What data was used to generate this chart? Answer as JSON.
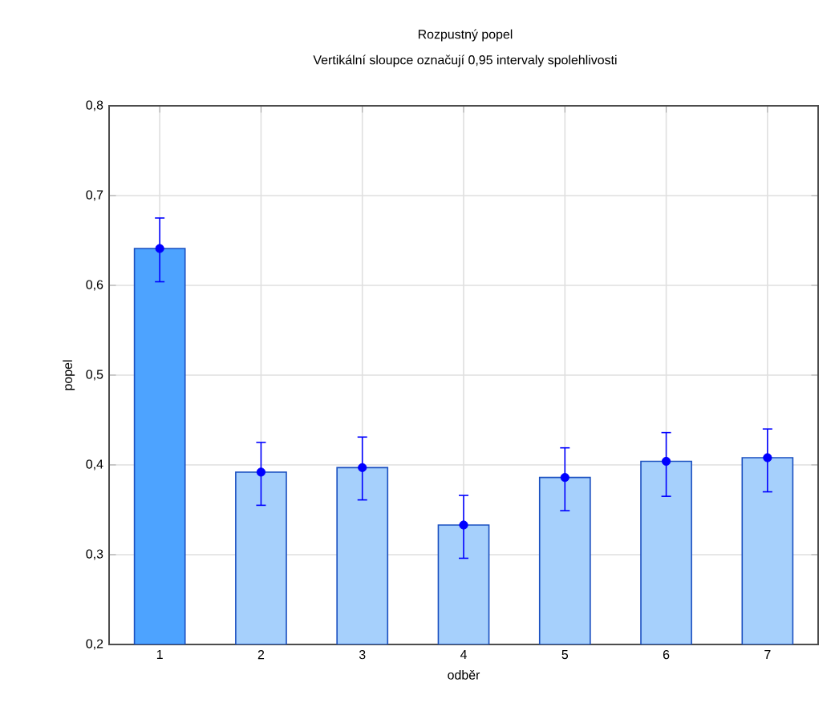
{
  "chart_data": {
    "type": "bar",
    "title": "Rozpustný popel",
    "subtitle": "Vertikální sloupce označují 0,95 intervaly spolehlivosti",
    "xlabel": "odběr",
    "ylabel": "popel",
    "categories": [
      "1",
      "2",
      "3",
      "4",
      "5",
      "6",
      "7"
    ],
    "series": [
      {
        "values": [
          0.641,
          0.392,
          0.397,
          0.333,
          0.386,
          0.404,
          0.408
        ],
        "colors": [
          "#4da3ff",
          "#a6d0fc",
          "#a6d0fc",
          "#a6d0fc",
          "#a6d0fc",
          "#a6d0fc",
          "#a6d0fc"
        ]
      },
      {
        "type": "scatter",
        "x": [
          "1",
          "2",
          "3",
          "4",
          "5",
          "6",
          "7"
        ],
        "values": [
          0.641,
          0.392,
          0.397,
          0.333,
          0.386,
          0.404,
          0.408
        ],
        "color": "#0000ff",
        "errors": [
          [
            0.604,
            0.675
          ],
          [
            0.355,
            0.425
          ],
          [
            0.361,
            0.431
          ],
          [
            0.296,
            0.366
          ],
          [
            0.349,
            0.419
          ],
          [
            0.365,
            0.436
          ],
          [
            0.37,
            0.44
          ]
        ]
      }
    ],
    "ylim": [
      0.2,
      0.8
    ],
    "yticks": [
      {
        "value": 0.2,
        "label": "0,2"
      },
      {
        "value": 0.3,
        "label": "0,3"
      },
      {
        "value": 0.4,
        "label": "0,4"
      },
      {
        "value": 0.5,
        "label": "0,5"
      },
      {
        "value": 0.6,
        "label": "0,6"
      },
      {
        "value": 0.7,
        "label": "0,7"
      },
      {
        "value": 0.8,
        "label": "0,8"
      }
    ],
    "grid": true,
    "marker": "circle"
  }
}
